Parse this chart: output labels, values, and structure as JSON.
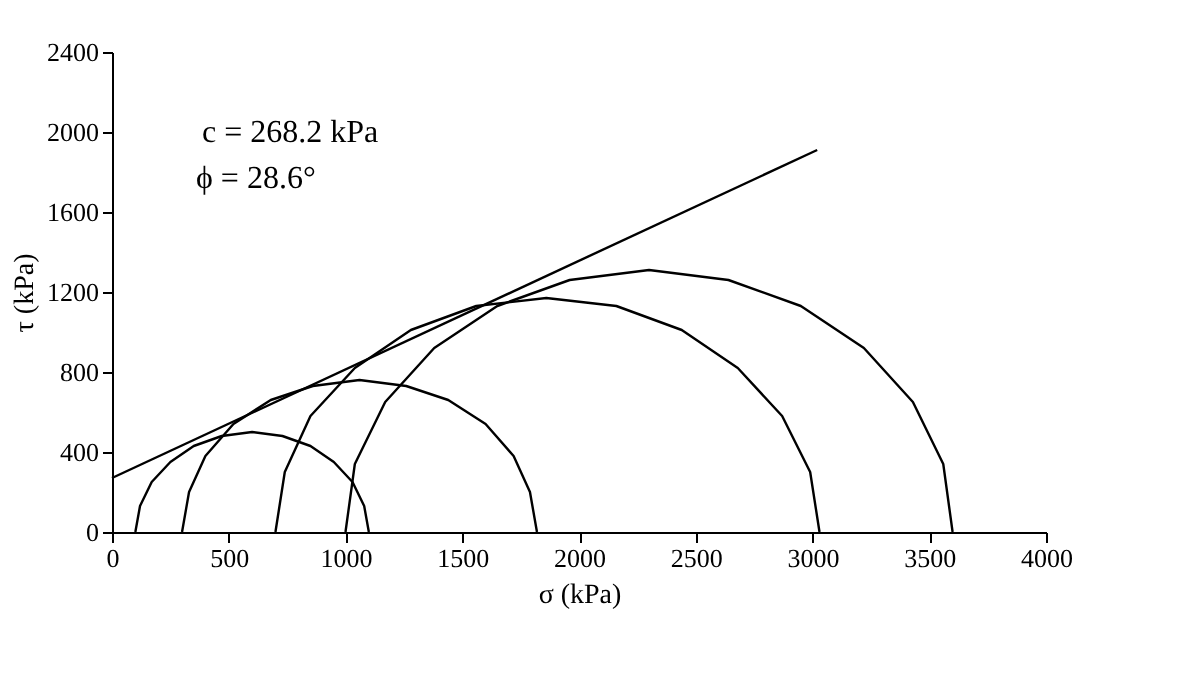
{
  "chart_data": {
    "type": "line",
    "xlabel": "σ (kPa)",
    "ylabel": "τ (kPa)",
    "xlim": [
      0,
      4000
    ],
    "xticks": [
      0,
      500,
      1000,
      1500,
      2000,
      2500,
      3000,
      3500,
      4000
    ],
    "ylim": [
      0,
      2400
    ],
    "yticks": [
      0,
      400,
      800,
      1200,
      1600,
      2000,
      2400
    ],
    "grid": false,
    "legend": false,
    "marker": "none",
    "line_style": "solid",
    "annotations": [
      "c = 268.2 kPa",
      "ϕ = 28.6°"
    ],
    "series": [
      {
        "color": "#000000",
        "x": [
          100,
          120,
          170,
          250,
          350,
          470,
          600,
          730,
          850,
          950,
          1030,
          1080,
          1100
        ],
        "values": [
          0,
          130,
          250,
          350,
          430,
          480,
          500,
          480,
          430,
          350,
          250,
          130,
          0
        ]
      },
      {
        "color": "#000000",
        "x": [
          300,
          330,
          400,
          520,
          680,
          860,
          1060,
          1260,
          1440,
          1600,
          1720,
          1790,
          1820
        ],
        "values": [
          0,
          200,
          380,
          540,
          660,
          730,
          760,
          730,
          660,
          540,
          380,
          200,
          0
        ]
      },
      {
        "color": "#000000",
        "x": [
          700,
          740,
          850,
          1040,
          1280,
          1560,
          1860,
          2160,
          2440,
          2680,
          2870,
          2990,
          3030
        ],
        "values": [
          0,
          300,
          580,
          820,
          1010,
          1130,
          1170,
          1130,
          1010,
          820,
          580,
          300,
          0
        ]
      },
      {
        "color": "#000000",
        "x": [
          1000,
          1040,
          1170,
          1380,
          1650,
          1960,
          2300,
          2640,
          2950,
          3220,
          3430,
          3560,
          3600
        ],
        "values": [
          0,
          340,
          650,
          920,
          1130,
          1260,
          1310,
          1260,
          1130,
          920,
          650,
          340,
          0
        ]
      },
      {
        "color": "#000000",
        "x": [
          0,
          3020
        ],
        "values": [
          270,
          1910
        ]
      }
    ]
  }
}
